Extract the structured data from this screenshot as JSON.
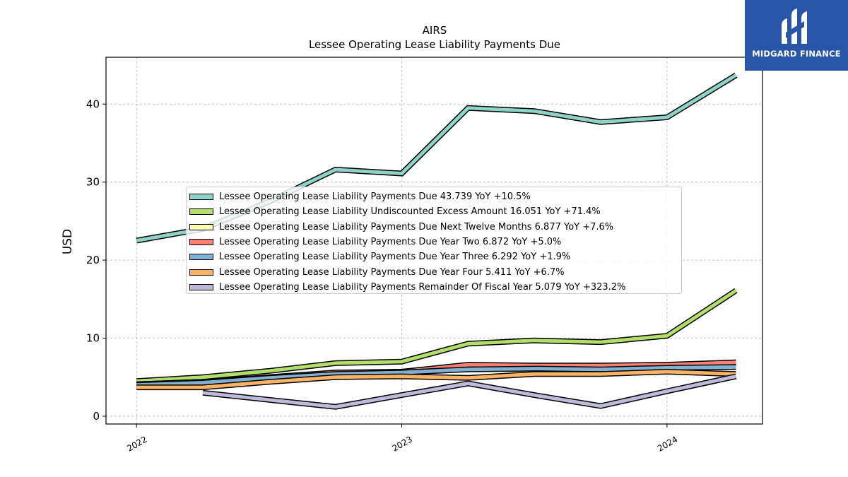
{
  "branding": {
    "logo_text": "MIDGARD FINANCE"
  },
  "chart_data": {
    "type": "line",
    "title": "AIRS",
    "subtitle": "Lessee Operating Lease Liability Payments Due",
    "ylabel": "USD",
    "xlabel": "",
    "ylim": [
      -1,
      46
    ],
    "xlim": [
      2021.885,
      2024.36
    ],
    "yticks": [
      0,
      10,
      20,
      30,
      40
    ],
    "xticks": [
      "2022",
      "2023",
      "2024"
    ],
    "grid": true,
    "legend_position": "center",
    "series": [
      {
        "name": "Lessee Operating Lease Liability Payments Due  43.739 YoY +10.5%",
        "color": "#8dd3c7",
        "points": [
          [
            2022.0,
            22.5
          ],
          [
            2022.25,
            24.0
          ],
          [
            2022.5,
            27.5
          ],
          [
            2022.75,
            31.6
          ],
          [
            2023.0,
            31.1
          ],
          [
            2023.25,
            39.5
          ],
          [
            2023.5,
            39.1
          ],
          [
            2023.75,
            37.7
          ],
          [
            2024.0,
            38.3
          ],
          [
            2024.26,
            43.7
          ]
        ]
      },
      {
        "name": "Lessee Operating Lease Liability Undiscounted Excess Amount  16.051 YoY +71.4%",
        "color": "#b3de69",
        "points": [
          [
            2022.0,
            4.5
          ],
          [
            2022.25,
            5.0
          ],
          [
            2022.5,
            5.8
          ],
          [
            2022.75,
            6.8
          ],
          [
            2023.0,
            7.0
          ],
          [
            2023.25,
            9.3
          ],
          [
            2023.5,
            9.7
          ],
          [
            2023.75,
            9.5
          ],
          [
            2024.0,
            10.3
          ],
          [
            2024.26,
            16.1
          ]
        ]
      },
      {
        "name": "Lessee Operating Lease Liability Payments Due Next Twelve Months  6.877 YoY +7.6%",
        "color": "#ffffb3",
        "points": [
          [
            2022.0,
            4.1
          ],
          [
            2022.25,
            4.4
          ],
          [
            2022.5,
            4.9
          ],
          [
            2022.75,
            5.5
          ],
          [
            2023.0,
            5.7
          ],
          [
            2023.25,
            6.3
          ],
          [
            2023.5,
            6.4
          ],
          [
            2023.75,
            6.4
          ],
          [
            2024.0,
            6.4
          ],
          [
            2024.26,
            6.9
          ]
        ]
      },
      {
        "name": "Lessee Operating Lease Liability Payments Due Year Two  6.872 YoY +5.0%",
        "color": "#fb8072",
        "points": [
          [
            2022.0,
            4.1
          ],
          [
            2022.25,
            4.4
          ],
          [
            2022.5,
            5.0
          ],
          [
            2022.75,
            5.6
          ],
          [
            2023.0,
            5.7
          ],
          [
            2023.25,
            6.6
          ],
          [
            2023.5,
            6.5
          ],
          [
            2023.75,
            6.5
          ],
          [
            2024.0,
            6.6
          ],
          [
            2024.26,
            6.9
          ]
        ]
      },
      {
        "name": "Lessee Operating Lease Liability Payments Due Year Three  6.292 YoY +1.9%",
        "color": "#80b1d3",
        "points": [
          [
            2022.0,
            4.0
          ],
          [
            2022.25,
            4.3
          ],
          [
            2022.5,
            4.9
          ],
          [
            2022.75,
            5.4
          ],
          [
            2023.0,
            5.6
          ],
          [
            2023.25,
            6.0
          ],
          [
            2023.5,
            6.1
          ],
          [
            2023.75,
            6.0
          ],
          [
            2024.0,
            6.2
          ],
          [
            2024.26,
            6.3
          ]
        ]
      },
      {
        "name": "Lessee Operating Lease Liability Payments Due Year Four  5.411 YoY +6.7%",
        "color": "#fdb462",
        "points": [
          [
            2022.0,
            3.7
          ],
          [
            2022.25,
            3.7
          ],
          [
            2022.5,
            4.4
          ],
          [
            2022.75,
            5.0
          ],
          [
            2023.0,
            5.1
          ],
          [
            2023.25,
            4.9
          ],
          [
            2023.5,
            5.4
          ],
          [
            2023.75,
            5.4
          ],
          [
            2024.0,
            5.7
          ],
          [
            2024.26,
            5.4
          ]
        ]
      },
      {
        "name": "Lessee Operating Lease Liability Payments Remainder Of Fiscal Year  5.079 YoY +323.2%",
        "color": "#bebada",
        "points": [
          [
            2022.25,
            3.0
          ],
          [
            2022.5,
            2.1
          ],
          [
            2022.75,
            1.2
          ],
          [
            2023.0,
            2.7
          ],
          [
            2023.25,
            4.2
          ],
          [
            2023.5,
            2.7
          ],
          [
            2023.75,
            1.3
          ],
          [
            2024.0,
            3.2
          ],
          [
            2024.26,
            5.1
          ]
        ]
      }
    ]
  }
}
